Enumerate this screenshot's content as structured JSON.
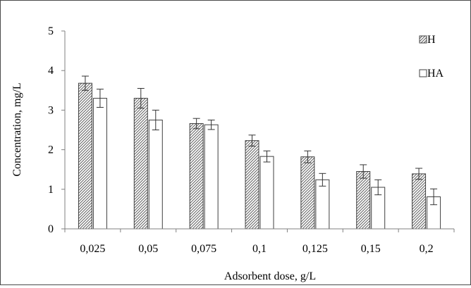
{
  "chart_data": {
    "type": "bar",
    "title": "",
    "xlabel": "Adsorbent dose, g/L",
    "ylabel": "Concentration, mg/L",
    "ylim": [
      0,
      5
    ],
    "yticks": [
      0,
      1,
      2,
      3,
      4,
      5
    ],
    "grid": false,
    "legend_position": "top-right",
    "categories": [
      "0,025",
      "0,05",
      "0,075",
      "0,1",
      "0,125",
      "0,15",
      "0,2"
    ],
    "series": [
      {
        "name": "H",
        "pattern": "diagonal-hatch",
        "values": [
          3.68,
          3.3,
          2.66,
          2.23,
          1.82,
          1.45,
          1.39
        ],
        "errors": [
          0.18,
          0.25,
          0.13,
          0.14,
          0.15,
          0.17,
          0.14
        ]
      },
      {
        "name": "HA",
        "pattern": "solid-white",
        "values": [
          3.3,
          2.75,
          2.63,
          1.83,
          1.24,
          1.05,
          0.81
        ],
        "errors": [
          0.23,
          0.25,
          0.12,
          0.14,
          0.16,
          0.19,
          0.2
        ]
      }
    ],
    "colors": {
      "bar_stroke": "#404040",
      "hatch": "#606060",
      "axis": "#808080",
      "error_bar": "#333333",
      "frame": "#4a4a4a"
    }
  }
}
